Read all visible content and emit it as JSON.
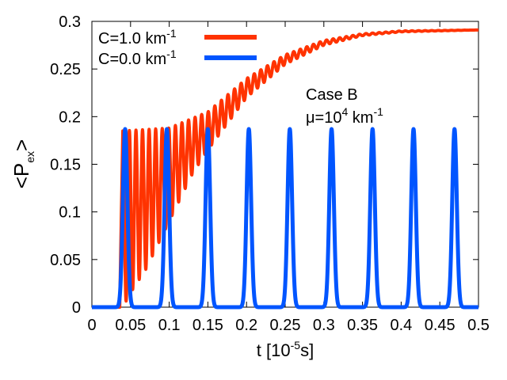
{
  "chart_data": {
    "type": "line",
    "title": "",
    "xlabel": {
      "base": "t [10",
      "sup": "-5",
      "tail": "s]"
    },
    "ylabel": {
      "base": "<P",
      "sub": "ex",
      "tail": ">"
    },
    "xlim": [
      0,
      0.5
    ],
    "ylim": [
      0,
      0.3
    ],
    "xticks": [
      0,
      0.05,
      0.1,
      0.15,
      0.2,
      0.25,
      0.3,
      0.35,
      0.4,
      0.45,
      0.5
    ],
    "xtick_labels": [
      "0",
      "0.05",
      "0.1",
      "0.15",
      "0.2",
      "0.25",
      "0.3",
      "0.35",
      "0.4",
      "0.45",
      "0.5"
    ],
    "yticks": [
      0,
      0.05,
      0.1,
      0.15,
      0.2,
      0.25,
      0.3
    ],
    "ytick_labels": [
      "0",
      "0.05",
      "0.1",
      "0.15",
      "0.2",
      "0.25",
      "0.3"
    ],
    "grid": false,
    "legend_position": "top-left",
    "annotation": {
      "line1": "Case B",
      "line2_base": "μ=10",
      "line2_sup": "4",
      "line2_tail": " km",
      "line2_sup2": "-1"
    },
    "series": [
      {
        "name": "C=1.0 km-1",
        "label_base": "C=1.0 km",
        "label_sup": "-1",
        "color": "#ff3300",
        "description": "damped oscillation converging to ~0.29",
        "oscillation_period": 0.0085,
        "asymptote": 0.291,
        "envelope_upper": [
          [
            0.04,
            0.185
          ],
          [
            0.1,
            0.188
          ],
          [
            0.15,
            0.205
          ],
          [
            0.2,
            0.24
          ],
          [
            0.25,
            0.265
          ],
          [
            0.3,
            0.28
          ],
          [
            0.35,
            0.287
          ],
          [
            0.4,
            0.29
          ],
          [
            0.5,
            0.291
          ]
        ],
        "envelope_lower": [
          [
            0.04,
            0.0
          ],
          [
            0.05,
            0.015
          ],
          [
            0.07,
            0.04
          ],
          [
            0.1,
            0.09
          ],
          [
            0.13,
            0.14
          ],
          [
            0.15,
            0.165
          ],
          [
            0.2,
            0.22
          ],
          [
            0.25,
            0.255
          ],
          [
            0.3,
            0.275
          ],
          [
            0.35,
            0.285
          ],
          [
            0.4,
            0.289
          ],
          [
            0.5,
            0.291
          ]
        ]
      },
      {
        "name": "C=0.0 km-1",
        "label_base": "C=0.0 km",
        "label_sup": "-1",
        "color": "#0055ff",
        "description": "periodic narrow peaks",
        "peak_times": [
          0.043,
          0.097,
          0.15,
          0.203,
          0.256,
          0.31,
          0.363,
          0.416,
          0.469
        ],
        "peak_height": 0.187,
        "peak_half_width": 0.005
      }
    ]
  }
}
